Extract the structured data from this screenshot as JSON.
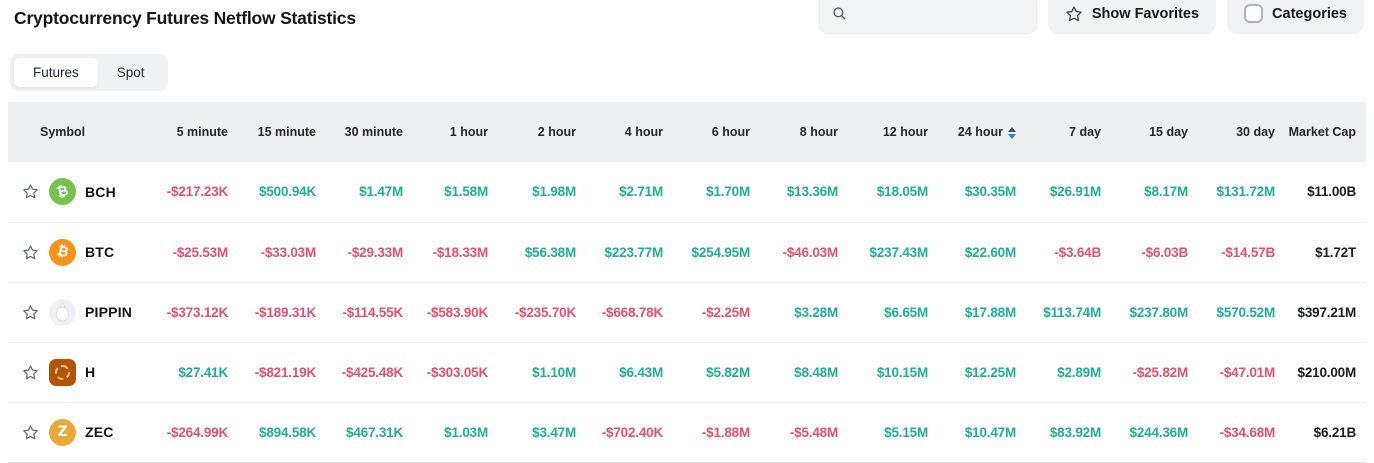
{
  "page": {
    "title": "Cryptocurrency Futures Netflow Statistics"
  },
  "header": {
    "search_placeholder": "",
    "search_icon": "magnifier",
    "show_favorites_label": "Show Favorites",
    "favorites_icon": "star-outline",
    "categories_label": "Categories",
    "categories_checkbox_checked": false
  },
  "tabs": [
    {
      "label": "Futures",
      "active": true
    },
    {
      "label": "Spot",
      "active": false
    }
  ],
  "colors": {
    "positive": "#1fae95",
    "negative": "#e5506e",
    "neutral": "#1b1d22",
    "header_band": "#edeff1"
  },
  "table": {
    "columns": [
      "Symbol",
      "5 minute",
      "15 minute",
      "30 minute",
      "1 hour",
      "2 hour",
      "4 hour",
      "6 hour",
      "8 hour",
      "12 hour",
      "24 hour",
      "7 day",
      "15 day",
      "30 day",
      "Market Cap"
    ],
    "sort_column": "24 hour",
    "sort_direction": "desc",
    "rows": [
      {
        "symbol": "BCH",
        "icon": {
          "name": "bch-coin-icon",
          "variant": "glyph",
          "shape": "circle",
          "bg": "#77c14e",
          "glyph": "₿",
          "rotate": -14
        },
        "values": [
          "-$217.23K",
          "$500.94K",
          "$1.47M",
          "$1.58M",
          "$1.98M",
          "$2.71M",
          "$1.70M",
          "$13.36M",
          "$18.05M",
          "$30.35M",
          "$26.91M",
          "$8.17M",
          "$131.72M"
        ],
        "market_cap": "$11.00B"
      },
      {
        "symbol": "BTC",
        "icon": {
          "name": "btc-coin-icon",
          "variant": "glyph",
          "shape": "circle",
          "bg": "#f7931a",
          "glyph": "₿",
          "rotate": 14
        },
        "values": [
          "-$25.53M",
          "-$33.03M",
          "-$29.33M",
          "-$18.33M",
          "$56.38M",
          "$223.77M",
          "$254.95M",
          "-$46.03M",
          "$237.43M",
          "$22.60M",
          "-$3.64B",
          "-$6.03B",
          "-$14.57B"
        ],
        "market_cap": "$1.72T"
      },
      {
        "symbol": "PIPPIN",
        "icon": {
          "name": "pippin-coin-icon",
          "variant": "pippin",
          "bg": "#eef0f4"
        },
        "values": [
          "-$373.12K",
          "-$189.31K",
          "-$114.55K",
          "-$583.90K",
          "-$235.70K",
          "-$668.78K",
          "-$2.25M",
          "$3.28M",
          "$6.65M",
          "$17.88M",
          "$113.74M",
          "$237.80M",
          "$570.52M"
        ],
        "market_cap": "$397.21M"
      },
      {
        "symbol": "H",
        "icon": {
          "name": "h-coin-icon",
          "variant": "dashed",
          "shape": "square",
          "bg": "#b4530a"
        },
        "values": [
          "$27.41K",
          "-$821.19K",
          "-$425.48K",
          "-$303.05K",
          "$1.10M",
          "$6.43M",
          "$5.82M",
          "$8.48M",
          "$10.15M",
          "$12.25M",
          "$2.89M",
          "-$25.82M",
          "-$47.01M"
        ],
        "market_cap": "$210.00M"
      },
      {
        "symbol": "ZEC",
        "icon": {
          "name": "zec-coin-icon",
          "variant": "glyph",
          "shape": "circle",
          "bg": "#e9a83a",
          "glyph": "Z",
          "rotate": 0
        },
        "values": [
          "-$264.99K",
          "$894.58K",
          "$467.31K",
          "$1.03M",
          "$3.47M",
          "-$702.40K",
          "-$1.88M",
          "-$5.48M",
          "$5.15M",
          "$10.47M",
          "$83.92M",
          "$244.36M",
          "-$34.68M"
        ],
        "market_cap": "$6.21B"
      }
    ]
  }
}
